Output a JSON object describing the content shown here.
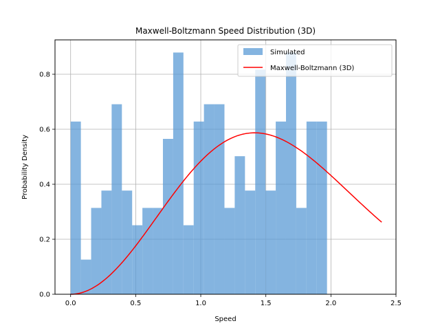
{
  "chart_data": {
    "type": "bar",
    "title": "Maxwell-Boltzmann Speed Distribution (3D)",
    "xlabel": "Speed",
    "ylabel": "Probability Density",
    "xlim": [
      -0.12,
      2.5
    ],
    "ylim": [
      0.0,
      0.925
    ],
    "xticks": [
      0.0,
      0.5,
      1.0,
      1.5,
      2.0,
      2.5
    ],
    "xtick_labels": [
      "0.0",
      "0.5",
      "1.0",
      "1.5",
      "2.0",
      "2.5"
    ],
    "yticks": [
      0.0,
      0.2,
      0.4,
      0.6,
      0.8
    ],
    "ytick_labels": [
      "0.0",
      "0.2",
      "0.4",
      "0.6",
      "0.8"
    ],
    "grid": true,
    "legend_position": "top-right",
    "series": [
      {
        "name": "Simulated",
        "kind": "histogram",
        "color": "#5b9bd5",
        "opacity": 0.75,
        "bin_start": 0.0,
        "bin_width": 0.0788,
        "values": [
          0.628,
          0.126,
          0.314,
          0.377,
          0.691,
          0.377,
          0.251,
          0.314,
          0.314,
          0.565,
          0.879,
          0.251,
          0.628,
          0.691,
          0.691,
          0.314,
          0.502,
          0.377,
          0.817,
          0.377,
          0.628,
          0.879,
          0.314,
          0.628,
          0.628
        ]
      },
      {
        "name": "Maxwell-Boltzmann (3D)",
        "kind": "line",
        "color": "#ff0000",
        "formula": "4*pi*(1/(2*pi))^(3/2)*v^2*exp(-v^2/2)",
        "x_range": [
          0.0,
          2.39
        ]
      }
    ]
  }
}
